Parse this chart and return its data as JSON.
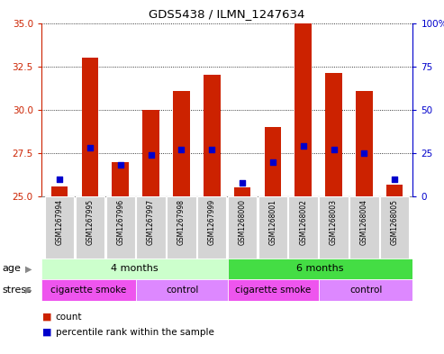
{
  "title": "GDS5438 / ILMN_1247634",
  "samples": [
    "GSM1267994",
    "GSM1267995",
    "GSM1267996",
    "GSM1267997",
    "GSM1267998",
    "GSM1267999",
    "GSM1268000",
    "GSM1268001",
    "GSM1268002",
    "GSM1268003",
    "GSM1268004",
    "GSM1268005"
  ],
  "counts": [
    25.6,
    33.0,
    27.0,
    30.0,
    31.1,
    32.0,
    25.5,
    29.0,
    35.0,
    32.1,
    31.1,
    25.7
  ],
  "percentiles": [
    10,
    28,
    18,
    24,
    27,
    27,
    8,
    20,
    29,
    27,
    25,
    10
  ],
  "base": 25,
  "ylim_left": [
    25,
    35
  ],
  "ylim_right": [
    0,
    100
  ],
  "yticks_left": [
    25,
    27.5,
    30,
    32.5,
    35
  ],
  "yticks_right": [
    0,
    25,
    50,
    75,
    100
  ],
  "bar_color": "#cc2200",
  "dot_color": "#0000cc",
  "bg_color": "#ffffff",
  "age_groups": [
    {
      "label": "4 months",
      "start": 0,
      "end": 6,
      "color": "#ccffcc"
    },
    {
      "label": "6 months",
      "start": 6,
      "end": 12,
      "color": "#44dd44"
    }
  ],
  "stress_groups": [
    {
      "label": "cigarette smoke",
      "start": 0,
      "end": 3,
      "color": "#ee55ee"
    },
    {
      "label": "control",
      "start": 3,
      "end": 6,
      "color": "#dd88ff"
    },
    {
      "label": "cigarette smoke",
      "start": 6,
      "end": 9,
      "color": "#ee55ee"
    },
    {
      "label": "control",
      "start": 9,
      "end": 12,
      "color": "#dd88ff"
    }
  ],
  "legend_count_color": "#cc2200",
  "legend_pct_color": "#0000cc",
  "left_axis_color": "#cc2200",
  "right_axis_color": "#0000cc"
}
